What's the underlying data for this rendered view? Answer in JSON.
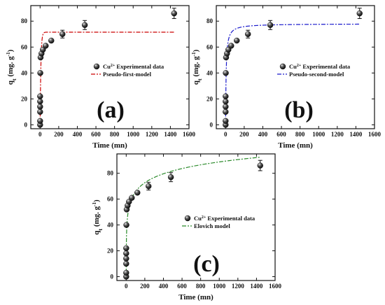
{
  "figure": {
    "panels": [
      "a",
      "b",
      "c"
    ]
  },
  "chart_data": [
    {
      "type": "scatter",
      "panel_label": "(a)",
      "xlabel": "Time (mn)",
      "ylabel": "q_t (mg. g^-1)",
      "ylabel_main": "q",
      "ylabel_sub": "t",
      "ylabel_rest": " (mg. g",
      "ylabel_sup": "-1",
      "ylabel_close": ")",
      "xlim": [
        -100,
        1600
      ],
      "ylim": [
        -3,
        92
      ],
      "xticks": [
        0,
        200,
        400,
        600,
        800,
        1000,
        1200,
        1400,
        1600
      ],
      "yticks": [
        0,
        20,
        40,
        60,
        80
      ],
      "legend_position": "middle-left",
      "series": [
        {
          "name": "Cu2+ Experimental data",
          "name_prefix": "Cu",
          "name_sup": "2+",
          "name_suffix": " Experimental data",
          "kind": "scatter",
          "points": [
            {
              "x": 0,
              "y": 0
            },
            {
              "x": 0,
              "y": 3
            },
            {
              "x": 0,
              "y": 10
            },
            {
              "x": 0,
              "y": 14
            },
            {
              "x": 0,
              "y": 18
            },
            {
              "x": 0,
              "y": 22
            },
            {
              "x": 2,
              "y": 40
            },
            {
              "x": 5,
              "y": 52
            },
            {
              "x": 15,
              "y": 55
            },
            {
              "x": 30,
              "y": 58
            },
            {
              "x": 60,
              "y": 61
            },
            {
              "x": 120,
              "y": 65
            },
            {
              "x": 240,
              "y": 70
            },
            {
              "x": 480,
              "y": 77
            },
            {
              "x": 1440,
              "y": 86
            }
          ],
          "errors": [
            {
              "x": 240,
              "err": 3
            },
            {
              "x": 480,
              "err": 3.5
            },
            {
              "x": 1440,
              "err": 4
            }
          ],
          "color": "#111111"
        },
        {
          "name": "Pseudo-first-model",
          "kind": "line",
          "model": "pfo",
          "params": {
            "qe": 71.5,
            "k1": 0.12
          },
          "color": "#cc0000",
          "dash": "6,2,2,2"
        }
      ]
    },
    {
      "type": "scatter",
      "panel_label": "(b)",
      "xlabel": "Time (mn)",
      "ylabel": "q_t (mg. g^-1)",
      "ylabel_main": "q",
      "ylabel_sub": "t",
      "ylabel_rest": " (mg. g",
      "ylabel_sup": "-1",
      "ylabel_close": ")",
      "xlim": [
        -100,
        1600
      ],
      "ylim": [
        -3,
        92
      ],
      "xticks": [
        0,
        200,
        400,
        600,
        800,
        1000,
        1200,
        1400,
        1600
      ],
      "yticks": [
        0,
        20,
        40,
        60,
        80
      ],
      "legend_position": "middle-left",
      "series": [
        {
          "name": "Cu2+ Experimental data",
          "name_prefix": "Cu",
          "name_sup": "2+",
          "name_suffix": " Experimental data",
          "kind": "scatter",
          "points": [
            {
              "x": 0,
              "y": 0
            },
            {
              "x": 0,
              "y": 3
            },
            {
              "x": 0,
              "y": 10
            },
            {
              "x": 0,
              "y": 14
            },
            {
              "x": 0,
              "y": 18
            },
            {
              "x": 0,
              "y": 22
            },
            {
              "x": 2,
              "y": 40
            },
            {
              "x": 5,
              "y": 52
            },
            {
              "x": 15,
              "y": 55
            },
            {
              "x": 30,
              "y": 58
            },
            {
              "x": 60,
              "y": 61
            },
            {
              "x": 120,
              "y": 65
            },
            {
              "x": 240,
              "y": 70
            },
            {
              "x": 480,
              "y": 77
            },
            {
              "x": 1440,
              "y": 86
            }
          ],
          "errors": [
            {
              "x": 240,
              "err": 3
            },
            {
              "x": 480,
              "err": 3.5
            },
            {
              "x": 1440,
              "err": 4
            }
          ],
          "color": "#111111"
        },
        {
          "name": "Pseudo-second-model",
          "kind": "line",
          "model": "pso",
          "params": {
            "qe": 78,
            "k2": 0.0022
          },
          "color": "#1a1acc",
          "dash": "6,2,2,2"
        }
      ]
    },
    {
      "type": "scatter",
      "panel_label": "(c)",
      "xlabel": "Time (mn)",
      "ylabel": "q_t (mg. g^-1)",
      "ylabel_main": "q",
      "ylabel_sub": "t",
      "ylabel_rest": " (mg. g",
      "ylabel_sup": "-1",
      "ylabel_close": ")",
      "xlim": [
        -100,
        1600
      ],
      "ylim": [
        -3,
        95
      ],
      "xticks": [
        0,
        200,
        400,
        600,
        800,
        1000,
        1200,
        1400,
        1600
      ],
      "yticks": [
        0,
        20,
        40,
        60,
        80
      ],
      "legend_position": "middle-center",
      "series": [
        {
          "name": "Cu2+ Experimental data",
          "name_prefix": "Cu",
          "name_sup": "2+",
          "name_suffix": " Experimental data",
          "kind": "scatter",
          "points": [
            {
              "x": 0,
              "y": 0
            },
            {
              "x": 0,
              "y": 3
            },
            {
              "x": 0,
              "y": 10
            },
            {
              "x": 0,
              "y": 14
            },
            {
              "x": 0,
              "y": 18
            },
            {
              "x": 0,
              "y": 22
            },
            {
              "x": 2,
              "y": 40
            },
            {
              "x": 5,
              "y": 52
            },
            {
              "x": 15,
              "y": 55
            },
            {
              "x": 30,
              "y": 58
            },
            {
              "x": 60,
              "y": 61
            },
            {
              "x": 120,
              "y": 65
            },
            {
              "x": 240,
              "y": 70
            },
            {
              "x": 480,
              "y": 77
            },
            {
              "x": 1440,
              "y": 86
            }
          ],
          "errors": [
            {
              "x": 240,
              "err": 3
            },
            {
              "x": 480,
              "err": 3.5
            },
            {
              "x": 1440,
              "err": 4
            }
          ],
          "color": "#111111"
        },
        {
          "name": "Elovich model",
          "kind": "line",
          "model": "elovich",
          "params": {
            "a": 19.7,
            "b": 10.0
          },
          "color": "#2a8a2a",
          "dash": "6,2,2,2"
        }
      ]
    }
  ]
}
